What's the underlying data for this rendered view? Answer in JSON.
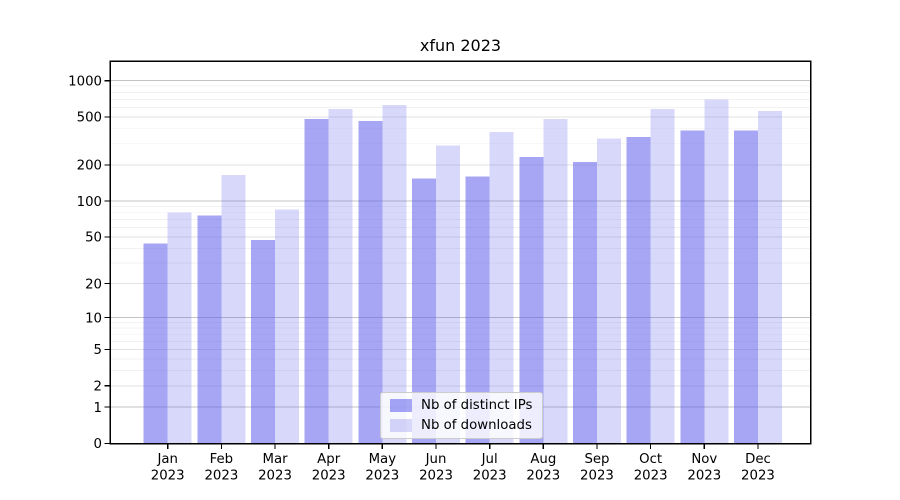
{
  "figure": {
    "background": "#ffffff"
  },
  "chart_data": {
    "type": "bar",
    "title": "xfun 2023",
    "categories": [
      "Jan",
      "Feb",
      "Mar",
      "Apr",
      "May",
      "Jun",
      "Jul",
      "Aug",
      "Sep",
      "Oct",
      "Nov",
      "Dec"
    ],
    "category_year": "2023",
    "series": [
      {
        "name": "Nb of distinct IPs",
        "color": "rgba(92,92,236,0.55)",
        "color_hex": "#a6a6f4",
        "values": [
          44,
          76,
          47,
          483,
          465,
          155,
          160,
          232,
          211,
          340,
          385,
          385
        ]
      },
      {
        "name": "Nb of downloads",
        "color": "rgba(92,92,236,0.24)",
        "color_hex": "#d8d8f9",
        "values": [
          80,
          165,
          85,
          584,
          630,
          289,
          374,
          483,
          333,
          580,
          700,
          562
        ]
      }
    ],
    "yscale": "log1p",
    "xlabel": "",
    "ylabel": "",
    "yticks": [
      0,
      1,
      2,
      5,
      10,
      20,
      50,
      100,
      200,
      500,
      1000
    ],
    "ylim": [
      0,
      1456
    ],
    "grid": true,
    "legend_position": "lower center"
  },
  "axis_colors": {
    "spine": "#000000",
    "tick": "#000000",
    "tick_label": "#000000",
    "grid_major": "#c3c3c3",
    "grid_mid": "#e2e2e2",
    "grid_minor": "#f2f2f2"
  }
}
